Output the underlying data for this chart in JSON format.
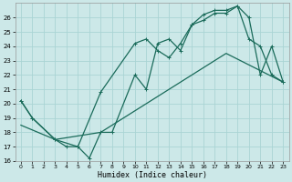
{
  "xlabel": "Humidex (Indice chaleur)",
  "bg_color": "#cce8e8",
  "grid_color": "#aad4d4",
  "line_color": "#1a6b5a",
  "xlim": [
    -0.5,
    23.5
  ],
  "ylim": [
    16,
    27
  ],
  "xticks": [
    0,
    1,
    2,
    3,
    4,
    5,
    6,
    7,
    8,
    9,
    10,
    11,
    12,
    13,
    14,
    15,
    16,
    17,
    18,
    19,
    20,
    21,
    22,
    23
  ],
  "yticks": [
    16,
    17,
    18,
    19,
    20,
    21,
    22,
    23,
    24,
    25,
    26
  ],
  "line1_x": [
    0,
    1,
    3,
    4,
    5,
    6,
    7,
    8,
    10,
    11,
    12,
    13,
    14,
    15,
    16,
    17,
    18,
    19,
    20,
    21,
    22,
    23
  ],
  "line1_y": [
    20.2,
    19.0,
    17.5,
    17.0,
    17.0,
    16.2,
    18.0,
    18.0,
    22.0,
    21.0,
    24.2,
    24.5,
    23.7,
    25.5,
    25.8,
    26.3,
    26.3,
    26.8,
    26.0,
    22.0,
    24.0,
    21.5
  ],
  "line2_x": [
    0,
    1,
    3,
    5,
    7,
    10,
    11,
    12,
    13,
    14,
    15,
    16,
    17,
    18,
    19,
    20,
    21,
    22,
    23
  ],
  "line2_y": [
    20.2,
    19.0,
    17.5,
    17.0,
    20.8,
    24.2,
    24.5,
    23.7,
    23.2,
    24.2,
    25.5,
    26.2,
    26.5,
    26.5,
    26.8,
    24.5,
    24.0,
    22.0,
    21.5
  ],
  "line3_x": [
    0,
    3,
    7,
    10,
    14,
    18,
    23
  ],
  "line3_y": [
    18.5,
    17.5,
    18.0,
    19.5,
    21.5,
    23.5,
    21.5
  ]
}
